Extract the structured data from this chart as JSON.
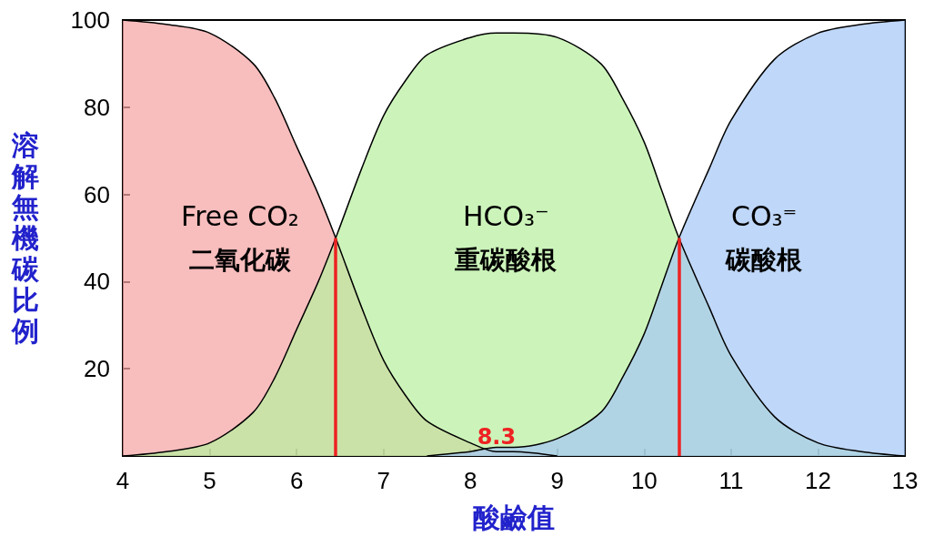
{
  "chart_data": {
    "type": "area",
    "xlabel": "酸鹼值",
    "ylabel": "溶解無機碳比例",
    "x": [
      4,
      4.5,
      5,
      5.5,
      5.75,
      6,
      6.25,
      6.45,
      6.75,
      7,
      7.25,
      7.5,
      8,
      8.3,
      8.5,
      9,
      9.5,
      9.75,
      10,
      10.2,
      10.4,
      10.75,
      11,
      11.5,
      12,
      12.5,
      13
    ],
    "series": [
      {
        "color": "#f5a3a3",
        "values": [
          100,
          99,
          97,
          90,
          82,
          71,
          60,
          50,
          34,
          22,
          14,
          8,
          3,
          1,
          1,
          0,
          null,
          null,
          null,
          null,
          null,
          null,
          null,
          null,
          null,
          null,
          null
        ]
      },
      {
        "color": "#b8f0a0",
        "values": [
          0,
          1,
          3,
          10,
          18,
          29,
          40,
          50,
          66,
          78,
          86,
          92,
          96,
          97,
          97,
          96,
          90,
          82,
          72,
          61,
          50,
          34,
          23,
          9,
          3,
          1,
          0
        ]
      },
      {
        "color": "#a6c8f5",
        "values": [
          null,
          null,
          null,
          null,
          null,
          null,
          null,
          null,
          null,
          null,
          null,
          0,
          1,
          2,
          2,
          4,
          10,
          18,
          28,
          39,
          50,
          66,
          77,
          91,
          97,
          99,
          100
        ]
      }
    ],
    "ref_lines": [
      {
        "axis": "x",
        "value": 6.45,
        "color": "#ee2222"
      },
      {
        "axis": "x",
        "value": 10.4,
        "color": "#ee2222"
      }
    ],
    "annotations": [
      "Free CO₂",
      "二氧化碳",
      "HCO₃⁻",
      "重碳酸根",
      "CO₃⁼",
      "碳酸根",
      {
        "text": "8.3",
        "x": 8.3,
        "y": 0
      }
    ],
    "xlim": [
      4,
      13
    ],
    "xticks": [
      4,
      5,
      6,
      7,
      8,
      9,
      10,
      11,
      12,
      13
    ],
    "ylim": [
      0,
      100
    ],
    "yticks": [
      {
        "value": 0,
        "label": null
      },
      20,
      40,
      60,
      80,
      100
    ],
    "marker": "none",
    "grid": false
  }
}
